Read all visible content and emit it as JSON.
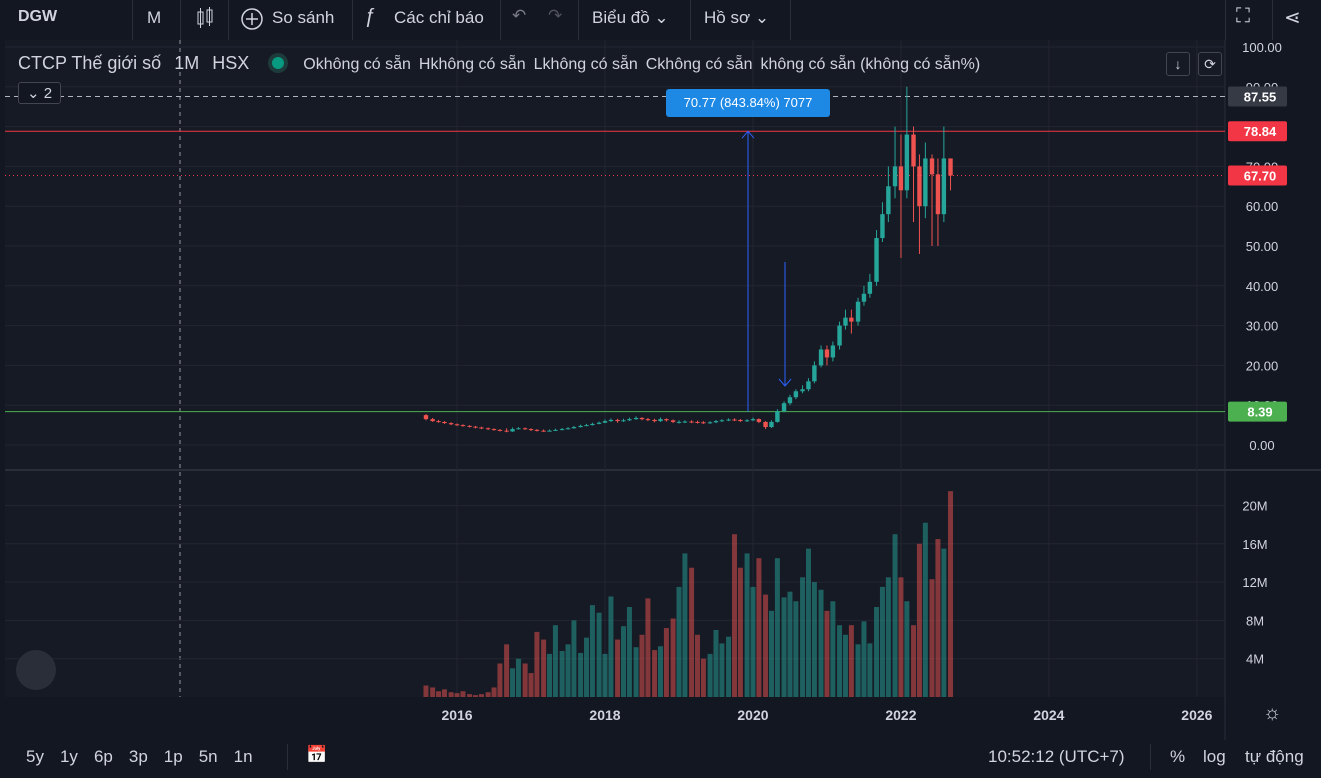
{
  "toolbar": {
    "symbol": "DGW",
    "interval": "M",
    "compare": "So sánh",
    "indicators": "Các chỉ báo",
    "chart_menu": "Biểu đồ",
    "profile_menu": "Hồ sơ"
  },
  "legend": {
    "name": "CTCP Thế giới số",
    "interval": "1M",
    "exchange": "HSX",
    "ohlc": [
      "Okhông có sẵn",
      "Hkhông có sẵn",
      "Lkhông có sẵn",
      "Ckhông có sẵn",
      "không có sẵn (không có sẵn%)"
    ],
    "collapsed_count": "2"
  },
  "measure": "70.77 (843.84%) 7077",
  "chart_data": {
    "type": "candlestick",
    "x": [
      2015.58,
      2015.67,
      2015.75,
      2015.83,
      2015.92,
      2016.0,
      2016.08,
      2016.17,
      2016.25,
      2016.33,
      2016.42,
      2016.5,
      2016.58,
      2016.67,
      2016.75,
      2016.83,
      2016.92,
      2017.0,
      2017.08,
      2017.17,
      2017.25,
      2017.33,
      2017.42,
      2017.5,
      2017.58,
      2017.67,
      2017.75,
      2017.83,
      2017.92,
      2018.0,
      2018.08,
      2018.17,
      2018.25,
      2018.33,
      2018.42,
      2018.5,
      2018.58,
      2018.67,
      2018.75,
      2018.83,
      2018.92,
      2019.0,
      2019.08,
      2019.17,
      2019.25,
      2019.33,
      2019.42,
      2019.5,
      2019.58,
      2019.67,
      2019.75,
      2019.83,
      2019.92,
      2020.0,
      2020.08,
      2020.17,
      2020.25,
      2020.33,
      2020.42,
      2020.5,
      2020.58,
      2020.67,
      2020.75,
      2020.83,
      2020.92,
      2021.0,
      2021.08,
      2021.17,
      2021.25,
      2021.33,
      2021.42,
      2021.5,
      2021.58,
      2021.67,
      2021.75,
      2021.83,
      2021.92,
      2022.0,
      2022.08,
      2022.17,
      2022.25,
      2022.33,
      2022.42,
      2022.5,
      2022.58,
      2022.67
    ],
    "open": [
      7.5,
      6.5,
      6.0,
      5.8,
      5.5,
      5.2,
      5.0,
      4.8,
      4.6,
      4.4,
      4.2,
      4.0,
      3.8,
      3.6,
      3.4,
      4.0,
      4.2,
      4.0,
      3.8,
      3.6,
      3.5,
      3.6,
      3.8,
      4.0,
      4.2,
      4.5,
      4.8,
      5.0,
      5.3,
      5.6,
      6.0,
      6.3,
      6.0,
      6.2,
      6.5,
      6.8,
      6.5,
      6.3,
      6.0,
      6.5,
      6.2,
      5.8,
      5.8,
      5.9,
      5.8,
      5.7,
      5.6,
      5.7,
      6.0,
      6.2,
      6.4,
      6.3,
      6.0,
      6.2,
      6.5,
      5.8,
      4.5,
      5.8,
      8.5,
      10.5,
      12,
      13.5,
      14,
      16,
      20,
      24,
      22,
      25,
      30,
      32,
      31,
      36,
      38,
      41,
      52,
      58,
      65,
      70,
      64,
      78,
      70,
      60,
      72,
      68,
      58,
      72
    ],
    "high": [
      7.8,
      6.8,
      6.3,
      6.0,
      5.7,
      5.4,
      5.2,
      5.0,
      4.8,
      4.6,
      4.4,
      4.2,
      4.0,
      4.2,
      4.4,
      4.5,
      4.4,
      4.2,
      4.0,
      3.9,
      3.9,
      4.1,
      4.3,
      4.5,
      4.8,
      5.1,
      5.3,
      5.6,
      5.9,
      6.4,
      6.7,
      6.6,
      6.6,
      6.9,
      7.2,
      7.0,
      6.8,
      6.6,
      6.9,
      6.7,
      6.4,
      6.2,
      6.2,
      6.2,
      6.1,
      6.0,
      6.0,
      6.3,
      6.5,
      6.7,
      6.7,
      6.5,
      6.5,
      6.9,
      6.7,
      6.0,
      6.2,
      9.0,
      11,
      12.6,
      14,
      15,
      16.8,
      21,
      25,
      25,
      26,
      31,
      34,
      34,
      37,
      40,
      43,
      54,
      61,
      70,
      80,
      78,
      90,
      80,
      73,
      76,
      73,
      72,
      80,
      72
    ],
    "low": [
      6.2,
      5.8,
      5.6,
      5.3,
      5.0,
      4.8,
      4.6,
      4.4,
      4.2,
      4.0,
      3.8,
      3.6,
      3.4,
      3.2,
      3.3,
      3.9,
      3.8,
      3.5,
      3.4,
      3.3,
      3.4,
      3.5,
      3.7,
      3.9,
      4.1,
      4.4,
      4.7,
      4.9,
      5.2,
      5.5,
      5.8,
      5.6,
      5.8,
      6.0,
      6.3,
      6.2,
      6.0,
      5.7,
      5.8,
      5.9,
      5.5,
      5.4,
      5.5,
      5.5,
      5.4,
      5.3,
      5.3,
      5.5,
      5.8,
      6.0,
      6.0,
      5.8,
      5.8,
      6.0,
      5.5,
      4.0,
      4.3,
      5.6,
      8.2,
      10,
      11.5,
      13,
      13.5,
      15.5,
      19.5,
      20,
      21,
      24,
      29,
      28,
      30,
      35,
      37,
      40,
      51,
      56,
      62,
      47,
      62,
      56,
      48,
      57,
      50,
      50,
      56,
      64
    ],
    "close": [
      6.5,
      6.0,
      5.8,
      5.5,
      5.2,
      5.0,
      4.8,
      4.6,
      4.4,
      4.2,
      4.0,
      3.8,
      3.6,
      3.4,
      4.0,
      4.2,
      4.0,
      3.8,
      3.6,
      3.5,
      3.6,
      3.8,
      4.0,
      4.2,
      4.5,
      4.8,
      5.0,
      5.3,
      5.6,
      6.0,
      6.3,
      6.0,
      6.2,
      6.5,
      6.8,
      6.5,
      6.3,
      6.0,
      6.5,
      6.2,
      5.8,
      5.8,
      5.9,
      5.8,
      5.7,
      5.6,
      5.7,
      6.0,
      6.2,
      6.4,
      6.3,
      6.0,
      6.2,
      6.5,
      5.8,
      4.5,
      5.8,
      8.5,
      10.5,
      12,
      13.5,
      14,
      16,
      20,
      24,
      22,
      25,
      30,
      32,
      31,
      36,
      38,
      41,
      52,
      58,
      65,
      70,
      64,
      78,
      70,
      60,
      72,
      68,
      58,
      72,
      67.7
    ],
    "volume": [
      1.2,
      1.0,
      0.6,
      0.8,
      0.5,
      0.4,
      0.6,
      0.3,
      0.2,
      0.3,
      0.5,
      1.0,
      3.5,
      5.5,
      3.0,
      4.0,
      3.5,
      2.5,
      6.8,
      6.0,
      4.5,
      7.5,
      4.8,
      5.5,
      8.0,
      4.6,
      6.2,
      9.6,
      8.8,
      4.5,
      10.5,
      6.0,
      7.4,
      9.4,
      5.2,
      6.5,
      10.3,
      4.9,
      5.3,
      7.2,
      8.2,
      11.5,
      15.0,
      13.5,
      6.5,
      4.0,
      4.5,
      7.0,
      5.6,
      6.3,
      17.0,
      13.5,
      15.0,
      11.5,
      14.5,
      10.7,
      9.0,
      14.5,
      10.4,
      11.0,
      10.0,
      12.5,
      15.5,
      12.0,
      11.2,
      9.0,
      10.0,
      7.5,
      6.5,
      7.5,
      5.5,
      7.9,
      5.6,
      9.4,
      11.5,
      12.5,
      17.0,
      12.5,
      10.0,
      7.5,
      16.0,
      18.2,
      12.3,
      16.5,
      15.5,
      21.5
    ],
    "up_color": "#26a69a",
    "down_color": "#ef5350",
    "xlim": [
      2009.89,
      2026.38
    ],
    "xticks": [
      2016,
      2018,
      2020,
      2022,
      2024,
      2026
    ],
    "ylim": [
      -5.78,
      101.76
    ],
    "yticks": [
      {
        "value": 0,
        "label": "0.00"
      },
      {
        "value": 10,
        "label": "10.00"
      },
      {
        "value": 20,
        "label": "20.00"
      },
      {
        "value": 30,
        "label": "30.00"
      },
      {
        "value": 40,
        "label": "40.00"
      },
      {
        "value": 50,
        "label": "50.00"
      },
      {
        "value": 60,
        "label": "60.00"
      },
      {
        "value": 70,
        "label": "70.00"
      },
      {
        "value": 80,
        "label": "80.00"
      },
      {
        "value": 90,
        "label": "90.00"
      },
      {
        "value": 100,
        "label": "100.00"
      }
    ],
    "volume_lim": [
      0,
      23.5
    ],
    "volume_ticks": [
      {
        "value": 4,
        "label": "4M"
      },
      {
        "value": 8,
        "label": "8M"
      },
      {
        "value": 12,
        "label": "12M"
      },
      {
        "value": 16,
        "label": "16M"
      },
      {
        "value": 20,
        "label": "20M"
      }
    ],
    "levels": [
      {
        "value": 87.55,
        "color": "#b2b5be",
        "style": "dashed",
        "badge": "#363a45"
      },
      {
        "value": 78.84,
        "color": "#f23645",
        "style": "solid",
        "badge": "#f23645"
      },
      {
        "value": 67.7,
        "label": "67.70",
        "color": "#f23645",
        "style": "dotted",
        "badge": "#f23645"
      },
      {
        "value": 8.39,
        "color": "#4caf50",
        "style": "solid",
        "badge": "#4caf50"
      }
    ],
    "grid": true
  },
  "range_buttons": [
    "5y",
    "1y",
    "6p",
    "3p",
    "1p",
    "5n",
    "1n"
  ],
  "status": {
    "clock": "10:52:12 (UTC+7)",
    "percent": "%",
    "log": "log",
    "auto": "tự động"
  }
}
